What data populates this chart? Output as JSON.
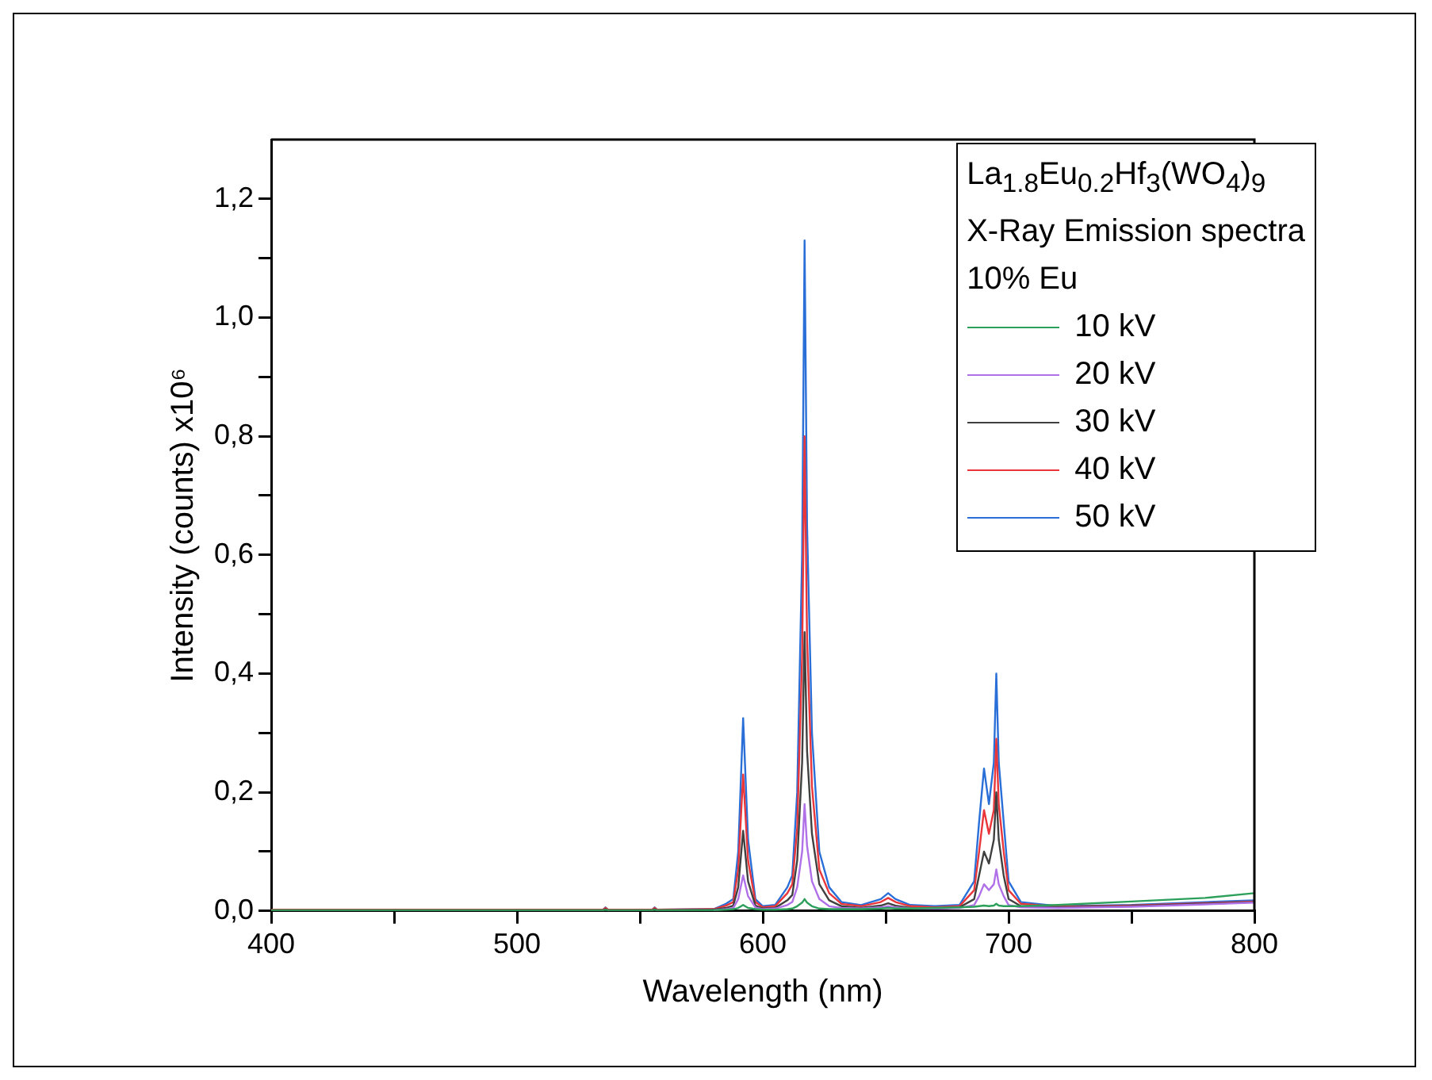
{
  "chart_data": {
    "type": "line",
    "xlabel": "Wavelength (nm)",
    "ylabel": "Intensity (counts) x10⁶",
    "legend_title": "La$_{1.8}$Eu$_{0.2}$Hf$_{3}$(WO$_{4}$)$_{9}$\nX-Ray Emission spectra\n10% Eu",
    "legend": "top right",
    "marker": "none",
    "line_style": "solid",
    "grid": false,
    "xlim": [
      400,
      800
    ],
    "xticks": [
      400,
      {
        "value": 450,
        "label": null
      },
      500,
      {
        "value": 550,
        "label": null
      },
      600,
      {
        "value": 650,
        "label": null
      },
      700,
      {
        "value": 750,
        "label": null
      },
      800
    ],
    "ylim": [
      0,
      1.3
    ],
    "yticks": [
      {
        "value": 0,
        "label": "0,0"
      },
      {
        "value": 0.1,
        "label": null
      },
      {
        "value": 0.2,
        "label": "0,2"
      },
      {
        "value": 0.3,
        "label": null
      },
      {
        "value": 0.4,
        "label": "0,4"
      },
      {
        "value": 0.5,
        "label": null
      },
      {
        "value": 0.6,
        "label": "0,6"
      },
      {
        "value": 0.7,
        "label": null
      },
      {
        "value": 0.8,
        "label": "0,8"
      },
      {
        "value": 0.9,
        "label": null
      },
      {
        "value": 1.0,
        "label": "1,0"
      },
      {
        "value": 1.1,
        "label": null
      },
      {
        "value": 1.2,
        "label": "1,2"
      }
    ],
    "x": [
      400,
      500,
      535,
      536,
      537,
      555,
      556,
      557,
      580,
      585,
      588,
      590,
      592,
      594,
      597,
      600,
      605,
      610,
      612,
      614,
      616,
      617,
      618,
      620,
      623,
      627,
      632,
      640,
      648,
      651,
      654,
      660,
      670,
      680,
      686,
      688,
      690,
      692,
      694,
      695,
      696,
      698,
      700,
      705,
      720,
      750,
      780,
      800
    ],
    "series": [
      {
        "name": "10 kV",
        "color": "#2ca05a",
        "values": [
          0.001,
          0.001,
          0.001,
          0.002,
          0.001,
          0.001,
          0.002,
          0.001,
          0.001,
          0.002,
          0.003,
          0.005,
          0.01,
          0.005,
          0.003,
          0.002,
          0.002,
          0.003,
          0.004,
          0.008,
          0.014,
          0.02,
          0.014,
          0.008,
          0.004,
          0.003,
          0.003,
          0.003,
          0.004,
          0.005,
          0.004,
          0.004,
          0.005,
          0.006,
          0.007,
          0.008,
          0.009,
          0.008,
          0.009,
          0.012,
          0.009,
          0.008,
          0.008,
          0.008,
          0.01,
          0.016,
          0.022,
          0.03
        ]
      },
      {
        "name": "20 kV",
        "color": "#b070e8",
        "values": [
          null,
          null,
          null,
          null,
          null,
          null,
          null,
          null,
          0.001,
          0.003,
          0.005,
          0.02,
          0.06,
          0.025,
          0.006,
          0.003,
          0.004,
          0.01,
          0.015,
          0.04,
          0.1,
          0.18,
          0.11,
          0.05,
          0.02,
          0.008,
          0.005,
          0.004,
          0.006,
          0.008,
          0.006,
          0.004,
          0.004,
          0.005,
          0.01,
          0.025,
          0.045,
          0.035,
          0.045,
          0.07,
          0.045,
          0.025,
          0.01,
          0.006,
          0.005,
          0.007,
          0.011,
          0.014
        ]
      },
      {
        "name": "30 kV",
        "color": "#404040",
        "values": [
          0.001,
          0.001,
          0.001,
          0.003,
          0.001,
          0.001,
          0.003,
          0.001,
          0.002,
          0.005,
          0.009,
          0.04,
          0.135,
          0.05,
          0.009,
          0.004,
          0.005,
          0.018,
          0.027,
          0.085,
          0.25,
          0.47,
          0.27,
          0.13,
          0.045,
          0.018,
          0.008,
          0.005,
          0.009,
          0.013,
          0.009,
          0.005,
          0.004,
          0.006,
          0.02,
          0.06,
          0.1,
          0.08,
          0.12,
          0.2,
          0.12,
          0.06,
          0.02,
          0.008,
          0.006,
          0.008,
          0.012,
          0.015
        ]
      },
      {
        "name": "40 kV",
        "color": "#e8363a",
        "values": [
          0.002,
          0.002,
          0.002,
          0.005,
          0.002,
          0.002,
          0.005,
          0.002,
          0.003,
          0.009,
          0.015,
          0.07,
          0.23,
          0.085,
          0.015,
          0.006,
          0.008,
          0.03,
          0.045,
          0.14,
          0.43,
          0.8,
          0.46,
          0.21,
          0.07,
          0.03,
          0.012,
          0.008,
          0.015,
          0.022,
          0.015,
          0.008,
          0.006,
          0.008,
          0.035,
          0.1,
          0.17,
          0.13,
          0.17,
          0.29,
          0.18,
          0.1,
          0.035,
          0.012,
          0.007,
          0.009,
          0.013,
          0.016
        ]
      },
      {
        "name": "50 kV",
        "color": "#2a6fd8",
        "values": [
          0.002,
          0.002,
          0.002,
          0.006,
          0.002,
          0.002,
          0.006,
          0.002,
          0.003,
          0.012,
          0.02,
          0.1,
          0.325,
          0.12,
          0.02,
          0.008,
          0.01,
          0.04,
          0.06,
          0.2,
          0.6,
          1.13,
          0.65,
          0.3,
          0.1,
          0.04,
          0.015,
          0.01,
          0.02,
          0.03,
          0.02,
          0.01,
          0.008,
          0.01,
          0.05,
          0.15,
          0.24,
          0.18,
          0.25,
          0.4,
          0.25,
          0.15,
          0.05,
          0.015,
          0.008,
          0.01,
          0.015,
          0.018
        ]
      }
    ]
  }
}
